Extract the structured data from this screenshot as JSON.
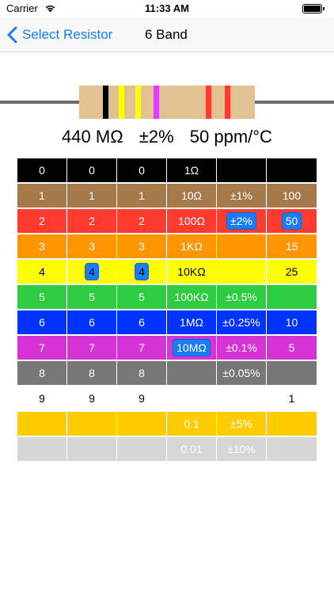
{
  "status_bar": {
    "carrier": "Carrier",
    "time": "11:33 AM",
    "battery_level": 1.0
  },
  "nav": {
    "back_label": "Select Resistor",
    "title": "6 Band"
  },
  "resistor": {
    "body_color": "#e3c292",
    "bands": [
      {
        "color": "#000000"
      },
      {
        "color": "#ffff00"
      },
      {
        "color": "#ffff00"
      },
      {
        "color": "#e040fb"
      },
      {
        "color": "#ff3b30"
      },
      {
        "color": "#ff3b30"
      }
    ]
  },
  "readout": {
    "resistance": "440 MΩ",
    "tolerance": "±2%",
    "tempco": "50 ppm/°C"
  },
  "grid": {
    "rows": [
      {
        "color": "#000000",
        "text_dark": false,
        "cells": [
          "0",
          "0",
          "0",
          "1Ω",
          "",
          ""
        ]
      },
      {
        "color": "#a5794a",
        "text_dark": false,
        "cells": [
          "1",
          "1",
          "1",
          "10Ω",
          "±1%",
          "100"
        ]
      },
      {
        "color": "#ff3b30",
        "text_dark": false,
        "cells": [
          "2",
          "2",
          "2",
          "100Ω",
          "±2%",
          "50"
        ],
        "selected": [
          4,
          5
        ]
      },
      {
        "color": "#ff9500",
        "text_dark": false,
        "cells": [
          "3",
          "3",
          "3",
          "1KΩ",
          "",
          "15"
        ]
      },
      {
        "color": "#ffff00",
        "text_dark": true,
        "cells": [
          "4",
          "4",
          "4",
          "10KΩ",
          "",
          "25"
        ],
        "selected": [
          1,
          2
        ]
      },
      {
        "color": "#2ecc40",
        "text_dark": false,
        "cells": [
          "5",
          "5",
          "5",
          "100KΩ",
          "±0.5%",
          ""
        ]
      },
      {
        "color": "#0033ff",
        "text_dark": false,
        "cells": [
          "6",
          "6",
          "6",
          "1MΩ",
          "±0.25%",
          "10"
        ]
      },
      {
        "color": "#d633d6",
        "text_dark": false,
        "cells": [
          "7",
          "7",
          "7",
          "10MΩ",
          "±0.1%",
          "5"
        ],
        "selected": [
          3
        ]
      },
      {
        "color": "#777777",
        "text_dark": false,
        "cells": [
          "8",
          "8",
          "8",
          "",
          "±0.05%",
          ""
        ]
      },
      {
        "color": "#ffffff",
        "text_dark": true,
        "cells": [
          "9",
          "9",
          "9",
          "",
          "",
          "1"
        ]
      },
      {
        "color": "#ffcc00",
        "text_dark": false,
        "cells": [
          "",
          "",
          "",
          "0.1",
          "±5%",
          ""
        ]
      },
      {
        "color": "#d6d6d6",
        "text_dark": false,
        "cells": [
          "",
          "",
          "",
          "0.01",
          "±10%",
          ""
        ]
      }
    ]
  }
}
